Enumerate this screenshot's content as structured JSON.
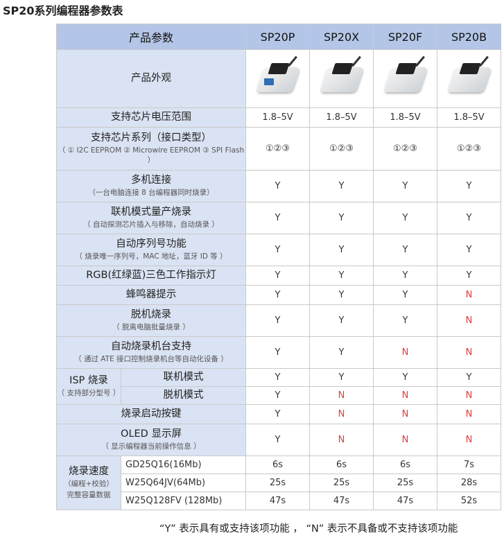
{
  "title": "SP20系列编程器参数表",
  "header": {
    "feature": "产品参数",
    "models": [
      "SP20P",
      "SP20X",
      "SP20F",
      "SP20B"
    ]
  },
  "appearance_label": "产品外观",
  "products": [
    {
      "icon": "sp20p-programmer-photo"
    },
    {
      "icon": "sp20x-programmer-photo"
    },
    {
      "icon": "sp20f-programmer-photo"
    },
    {
      "icon": "sp20b-programmer-photo"
    }
  ],
  "rows": [
    {
      "label": "支持芯片电压范围",
      "values": [
        "1.8–5V",
        "1.8–5V",
        "1.8–5V",
        "1.8–5V"
      ]
    },
    {
      "label": "支持芯片系列（接口类型）",
      "sub": "（ ① I2C EEPROM  ② Microwire EEPROM  ③ SPI Flash ）",
      "values": [
        "①②③",
        "①②③",
        "①②③",
        "①②③"
      ]
    },
    {
      "label": "多机连接",
      "sub": "（一台电脑连接 8 台编程器同时烧录）",
      "values": [
        "Y",
        "Y",
        "Y",
        "Y"
      ]
    },
    {
      "label": "联机模式量产烧录",
      "sub": "（ 自动探测芯片插入与移除，自动烧录 ）",
      "values": [
        "Y",
        "Y",
        "Y",
        "Y"
      ]
    },
    {
      "label": "自动序列号功能",
      "sub": "（ 烧录唯一序列号，MAC 地址，蓝牙 ID 等 ）",
      "values": [
        "Y",
        "Y",
        "Y",
        "Y"
      ]
    },
    {
      "label": "RGB(红绿蓝)三色工作指示灯",
      "values": [
        "Y",
        "Y",
        "Y",
        "Y"
      ]
    },
    {
      "label": "蜂鸣器提示",
      "values": [
        "Y",
        "Y",
        "Y",
        "N"
      ]
    },
    {
      "label": "脱机烧录",
      "sub": "（ 脱离电脑批量烧录 ）",
      "values": [
        "Y",
        "Y",
        "Y",
        "N"
      ]
    },
    {
      "label": "自动烧录机台支持",
      "sub": "（ 通过 ATE 接口控制烧录机台等自动化设备 ）",
      "values": [
        "Y",
        "Y",
        "N",
        "N"
      ]
    }
  ],
  "isp": {
    "label": "ISP 烧录",
    "sub": "（ 支持部分型号 ）",
    "modes": [
      {
        "label": "联机模式",
        "values": [
          "Y",
          "Y",
          "Y",
          "Y"
        ]
      },
      {
        "label": "脱机模式",
        "values": [
          "Y",
          "N",
          "N",
          "N"
        ]
      }
    ]
  },
  "rows2": [
    {
      "label": "烧录启动按键",
      "values": [
        "Y",
        "N",
        "N",
        "N"
      ]
    },
    {
      "label": "OLED 显示屏",
      "sub": "（ 显示编程器当前操作信息 ）",
      "values": [
        "Y",
        "N",
        "N",
        "N"
      ]
    }
  ],
  "speed": {
    "label": "烧录速度",
    "sub1": "（编程+校验）",
    "sub2": "完整容量数据",
    "chips": [
      {
        "label": "GD25Q16(16Mb)",
        "values": [
          "6s",
          "6s",
          "6s",
          "7s"
        ]
      },
      {
        "label": "W25Q64JV(64Mb)",
        "values": [
          "25s",
          "25s",
          "25s",
          "28s"
        ]
      },
      {
        "label": "W25Q128FV (128Mb)",
        "values": [
          "47s",
          "47s",
          "47s",
          "52s"
        ]
      }
    ]
  },
  "footnote": "“Y” 表示具有或支持该项功能 ， “N” 表示不具备或不支持该项功能"
}
